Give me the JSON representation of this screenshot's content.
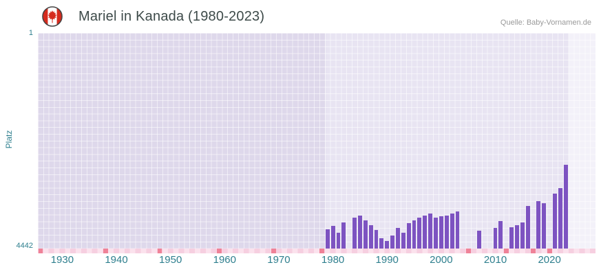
{
  "header": {
    "source": "Quelle: Baby-Vornamen.de"
  },
  "chart_data": {
    "type": "bar",
    "title": "Mariel in Kanada (1980-2023)",
    "xlabel": "",
    "ylabel": "Platz",
    "y_axis": {
      "top_tick": "1",
      "bottom_tick": "4442",
      "min": 1,
      "max": 4442,
      "inverted": true
    },
    "x_axis": {
      "domain": [
        1926,
        2029
      ],
      "ticks": [
        1930,
        1940,
        1950,
        1960,
        1970,
        1980,
        1990,
        2000,
        2010,
        2020
      ]
    },
    "regions": {
      "pre_data_until": 1979,
      "post_data_from": 2024
    },
    "legend": "none",
    "grid": "fine white grid on lavender background",
    "series": [
      {
        "name": "Platz",
        "points": [
          [
            1979,
            4050
          ],
          [
            1980,
            3980
          ],
          [
            1981,
            4120
          ],
          [
            1982,
            3900
          ],
          [
            1984,
            3800
          ],
          [
            1985,
            3760
          ],
          [
            1986,
            3860
          ],
          [
            1987,
            3960
          ],
          [
            1988,
            4060
          ],
          [
            1989,
            4230
          ],
          [
            1990,
            4280
          ],
          [
            1991,
            4180
          ],
          [
            1992,
            4020
          ],
          [
            1993,
            4120
          ],
          [
            1994,
            3920
          ],
          [
            1995,
            3860
          ],
          [
            1996,
            3800
          ],
          [
            1997,
            3760
          ],
          [
            1998,
            3720
          ],
          [
            1999,
            3800
          ],
          [
            2000,
            3780
          ],
          [
            2001,
            3760
          ],
          [
            2002,
            3720
          ],
          [
            2003,
            3680
          ],
          [
            2007,
            4080
          ],
          [
            2010,
            4020
          ],
          [
            2011,
            3870
          ],
          [
            2013,
            4010
          ],
          [
            2014,
            3960
          ],
          [
            2015,
            3910
          ],
          [
            2016,
            3560
          ],
          [
            2018,
            3460
          ],
          [
            2019,
            3510
          ],
          [
            2021,
            3310
          ],
          [
            2022,
            3200
          ],
          [
            2023,
            2710
          ]
        ]
      }
    ],
    "unranked_marker_years": [
      1926,
      1938,
      1948,
      1959,
      1969,
      1978,
      2005,
      2012,
      2017,
      2020
    ],
    "colors": {
      "bar": "#7d53c1",
      "plot_bg": "#e8e4f2",
      "plot_bg_pre": "#ded8eb",
      "plot_bg_post": "#f3f1f9",
      "axis_text": "#2e7f8e",
      "title_text": "#3d4a49",
      "source_text": "#999999",
      "marker_strip": "#fbe2ed",
      "marker_cell": "#f6cfe0",
      "marker_red": "#ef8298",
      "flag_red": "#d52b1e"
    }
  }
}
